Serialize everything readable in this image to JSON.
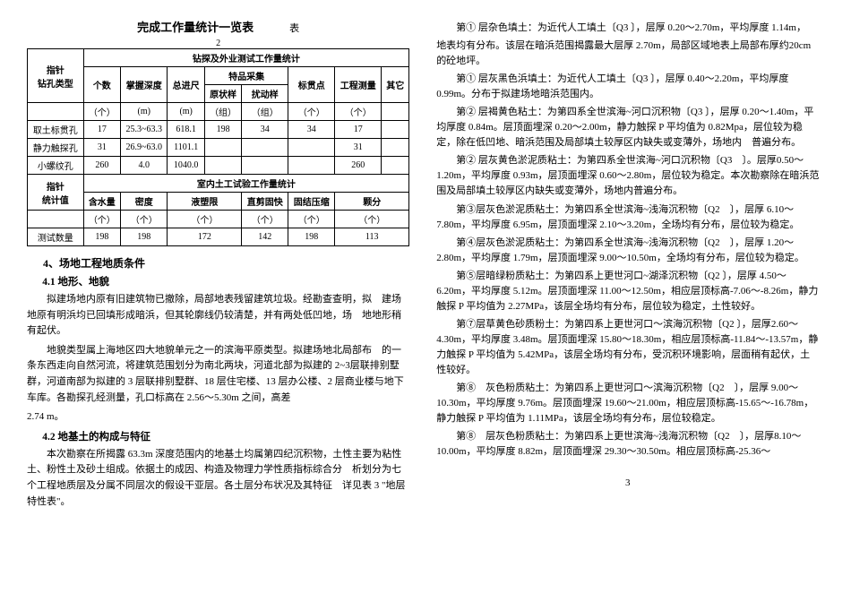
{
  "left": {
    "title_main": "完成工作量统计一览表",
    "title_side": "表",
    "title_sub": "2",
    "table1": {
      "header_span": "钻探及外业测试工作量统计",
      "row_labels": {
        "r1": "指针",
        "r2": "钻孔类型"
      },
      "cols": {
        "c1": "个数",
        "c2": "掌握深度",
        "c3": "总进尺",
        "c4_group": "特品采集",
        "c4a": "原状样",
        "c4b": "扰动样",
        "c5": "标贯点",
        "c6": "工程测量",
        "c7": "其它"
      },
      "unit_row": {
        "u1": "（个）",
        "u2": "(m)",
        "u3": "(m)",
        "u4": "（组）",
        "u5": "（组）",
        "u6": "（个）",
        "u7": "（个）"
      },
      "rows": [
        {
          "name": "取土标贯孔",
          "v": [
            "17",
            "25.3~63.3",
            "618.1",
            "198",
            "34",
            "34",
            "17",
            ""
          ]
        },
        {
          "name": "静力触探孔",
          "v": [
            "31",
            "26.9~63.0",
            "1101.1",
            "",
            "",
            "",
            "31",
            ""
          ]
        },
        {
          "name": "小螺纹孔",
          "v": [
            "260",
            "4.0",
            "1040.0",
            "",
            "",
            "",
            "260",
            ""
          ]
        }
      ]
    },
    "table2": {
      "header_span": "室内土工试验工作量统计",
      "row_labels": {
        "r1": "指针",
        "r2": "统计值"
      },
      "cols": {
        "c1": "含水量",
        "c2": "密度",
        "c3": "液塑限",
        "c4": "直剪固快",
        "c5": "固结压缩",
        "c6": "颗分"
      },
      "unit_row": {
        "u1": "（个）",
        "u2": "（个）",
        "u3": "（个）",
        "u4": "（个）",
        "u5": "（个）",
        "u6": "（个）"
      },
      "rows": [
        {
          "name": "测试数量",
          "v": [
            "198",
            "198",
            "172",
            "142",
            "198",
            "113"
          ]
        }
      ]
    },
    "sec4_title": "4、场地工程地质条件",
    "sec41_title": "4.1 地形、地貌",
    "p41a": "拟建场地内原有旧建筑物已撤除，局部地表残留建筑垃圾。经勘查查明，拟　建场地原有明浜均已回填形成暗浜，但其轮廓线仍较清楚，并有两处低凹地，场　地地形稍有起伏。",
    "p41b": "地貌类型属上海地区四大地貌单元之一的滨海平原类型。拟建场地北局部布　的一条东西走向自然河流，将建筑范围划分为南北两块，河道北部为拟建的 2~3层联排别墅群，河道南部为拟建的 3 层联排别墅群、18 层住宅楼、13 层办公楼、2 层商业楼与地下车库。各勘探孔经测量，孔口标高在 2.56～5.30m 之间，高差",
    "p41c": "2.74 m。",
    "sec42_title": "4.2 地基土的构成与特征",
    "p42a": "本次勘察在所揭露 63.3m 深度范围内的地基土均属第四纪沉积物，土性主要为粘性土、粉性土及砂土组成。依据土的成因、构造及物理力学性质指标综合分　析划分为七个工程地质层及分属不同层次的假设干亚层。各土层分布状况及其特征　详见表 3 \"地层特性表\"。"
  },
  "right": {
    "p1": "第① 层杂色填土：为近代人工填土〔Q3 〕，层厚 0.20～2.70m，平均厚度 1.14m，",
    "p1_sub": "1",
    "p1_sup": "4",
    "p2": "地表均有分布。该层在暗浜范围揭露最大层厚 2.70m，局部区域地表上局部布厚约20cm 的砼地坪。",
    "p3": "第① 层灰黑色浜填土：为近代人工填土〔Q3 〕，层厚 0.40～2.20m，平均厚度0.99m。分布于拟建场地暗浜范围内。",
    "p3_sub": "2",
    "p3_sup": "4",
    "p4": "第② 层褐黄色粘土：为第四系全世滨海~河口沉积物〔Q3 〕，层厚 0.20～1.40m，平均厚度 0.84m。层顶面埋深 0.20～2.00m，静力触探 P 平均值为 0.82Mpa，层位较为稳定，除在低凹地、暗浜范围及局部填土较厚区内缺失或变薄外，场地内　普遍分布。",
    "p4_sub1": "1",
    "p4_sub2": "4",
    "p4_sub3": "S",
    "p5": "第② 层灰黄色淤泥质粘土：为第四系全世滨海~河口沉积物〔Q3　〕。层厚0.50～1.20m，平均厚度 0.93m，层顶面埋深 0.60～2.80m，层位较为稳定。本次勘察除在暗浜范围及局部填土较厚区内缺失或变薄外，场地内普遍分布。",
    "p5_sub1": "2",
    "p5_sub2": "4",
    "p6": "第③层灰色淤泥质粘土：为第四系全世滨海~浅海沉积物〔Q2　〕，层厚 6.10～7.80m，平均厚度 6.95m，层顶面埋深 2.10～3.20m，全场均有分布，层位较为稳定。",
    "p6_sub": "4",
    "p7": "第④层灰色淤泥质粘土：为第四系全世滨海~浅海沉积物〔Q2　〕，层厚 1.20～2.80m，平均厚度 1.79m，层顶面埋深 9.00～10.50m，全场均有分布，层位较为稳定。",
    "p7_sub": "4",
    "p8": "第⑤层暗绿粉质粘土：为第四系上更世河口~湖泽沉积物〔Q2 〕，层厚 4.50～6.20m，平均厚度 5.12m。层顶面埋深 11.00～12.50m，相应层顶标高-7.06～-8.26m，静力触探 P 平均值为 2.27MPa，该层全场均有分布，层位较为稳定，土性较好。",
    "p8_sub1": "1",
    "p8_sub2": "3",
    "p8_sub3": "S",
    "p9": "第⑦层草黄色砂质粉土：为第四系上更世河口～滨海沉积物〔Q2 〕，层厚2.60～4.30m，平均厚度 3.48m。层顶面埋深 15.80～18.30m，相应层顶标高-11.84～-13.57m，静力触探 P 平均值为 5.42MPa，该层全场均有分布，受沉积环境影响，层面稍有起伏，土性较好。",
    "p9_sub1": "1",
    "p9_sub2": "3",
    "p9_sub3": "S",
    "p10": "第⑧　灰色粉质粘土：为第四系上更世河口～滨海沉积物〔Q2　〕，层厚 9.00～10.30m，平均厚度 9.76m。层顶面埋深 19.60～21.00m，相应层顶标高-15.65～-16.78m，静力触探 P 平均值为 1.11MPa，该层全场均有分布，层位较稳定。",
    "p10_sub1": "1-1",
    "p10_sub2": "3",
    "p10_sub3": "S",
    "p11": "第⑧　层灰色粉质粘土：为第四系上更世滨海~浅海沉积物〔Q2　〕，层厚8.10～10.00m，平均厚度 8.82m，层顶面埋深 29.30～30.50m。相应层顶标高-25.36～",
    "p11_sub1": "1-2",
    "p11_sub2": "3"
  },
  "pagenum": "3"
}
